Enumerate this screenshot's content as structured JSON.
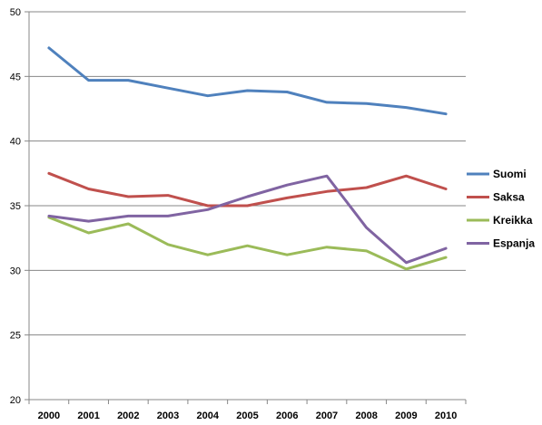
{
  "chart_data": {
    "type": "line",
    "title": "",
    "xlabel": "",
    "ylabel": "",
    "categories": [
      "2000",
      "2001",
      "2002",
      "2003",
      "2004",
      "2005",
      "2006",
      "2007",
      "2008",
      "2009",
      "2010"
    ],
    "ylim": [
      20,
      50
    ],
    "yticks": [
      20,
      25,
      30,
      35,
      40,
      45,
      50
    ],
    "grid": "horizontal",
    "legend_position": "right",
    "series": [
      {
        "name": "Suomi",
        "color": "#4F81BD",
        "values": [
          47.2,
          44.7,
          44.7,
          44.1,
          43.5,
          43.9,
          43.8,
          43.0,
          42.9,
          42.6,
          42.1
        ]
      },
      {
        "name": "Saksa",
        "color": "#C0504D",
        "values": [
          37.5,
          36.3,
          35.7,
          35.8,
          35.0,
          35.0,
          35.6,
          36.1,
          36.4,
          37.3,
          36.3
        ]
      },
      {
        "name": "Kreikka",
        "color": "#9BBB59",
        "values": [
          34.1,
          32.9,
          33.6,
          32.0,
          31.2,
          31.9,
          31.2,
          31.8,
          31.5,
          30.1,
          31.0
        ]
      },
      {
        "name": "Espanja",
        "color": "#8064A2",
        "values": [
          34.2,
          33.8,
          34.2,
          34.2,
          34.7,
          35.7,
          36.6,
          37.3,
          33.3,
          30.6,
          31.7
        ]
      }
    ]
  }
}
